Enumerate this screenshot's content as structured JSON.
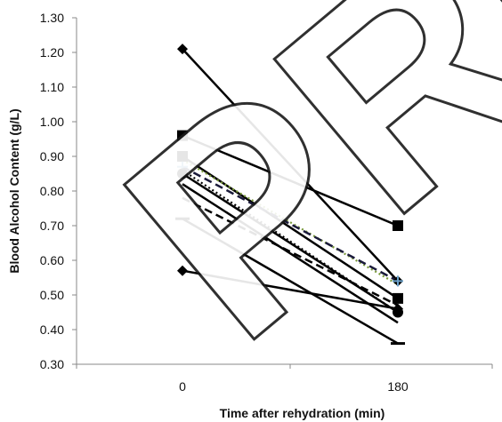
{
  "chart_data": {
    "type": "line",
    "title": "",
    "xlabel": "Time after rehydration (min)",
    "ylabel": "Blood Alcohol Content (g/L)",
    "categories": [
      "0",
      "180"
    ],
    "ylim": [
      0.3,
      1.3
    ],
    "yticks": [
      "0.30",
      "0.40",
      "0.50",
      "0.60",
      "0.70",
      "0.80",
      "0.90",
      "1.00",
      "1.10",
      "1.20",
      "1.30"
    ],
    "grid": false,
    "legend": "none",
    "series": [
      {
        "values": [
          1.21,
          0.54
        ],
        "marker": "diamond",
        "dash": "solid",
        "color": "#000000"
      },
      {
        "values": [
          0.96,
          0.7
        ],
        "marker": "square",
        "dash": "solid",
        "color": "#000000"
      },
      {
        "values": [
          0.9,
          0.49
        ],
        "marker": "square",
        "dash": "solid",
        "color": "#000000"
      },
      {
        "values": [
          0.89,
          0.53
        ],
        "marker": "none",
        "dash": "dotted",
        "color": "#7a9a3a"
      },
      {
        "values": [
          0.87,
          0.54
        ],
        "marker": "plus",
        "dash": "dashed",
        "color": "#1a1a3a"
      },
      {
        "values": [
          0.86,
          0.45
        ],
        "marker": "none",
        "dash": "dotted",
        "color": "#000000"
      },
      {
        "values": [
          0.85,
          0.45
        ],
        "marker": "circle",
        "dash": "solid",
        "color": "#000000"
      },
      {
        "values": [
          0.82,
          0.42
        ],
        "marker": "none",
        "dash": "solid",
        "color": "#000000"
      },
      {
        "values": [
          0.78,
          0.47
        ],
        "marker": "none",
        "dash": "dashed",
        "color": "#000000"
      },
      {
        "values": [
          0.72,
          0.36
        ],
        "marker": "dash",
        "dash": "solid",
        "color": "#000000"
      },
      {
        "values": [
          0.57,
          0.46
        ],
        "marker": "diamond",
        "dash": "solid",
        "color": "#000000"
      }
    ]
  }
}
